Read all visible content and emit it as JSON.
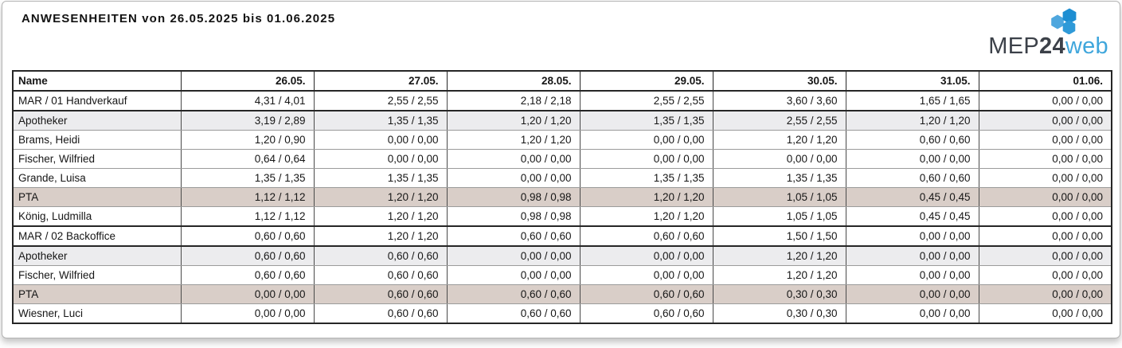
{
  "page": {
    "title": "ANWESENHEITEN von 26.05.2025 bis 01.06.2025"
  },
  "logo": {
    "mep": "MEP",
    "num": "24",
    "web": "web",
    "colors": {
      "text_dark": "#3c4149",
      "text_blue": "#3fa6dc",
      "hex_left": "#4fa7de",
      "hex_top_right": "#1d8ed2",
      "hex_bottom_right": "#2f9ad8"
    }
  },
  "table": {
    "columns": [
      "Name",
      "26.05.",
      "27.05.",
      "28.05.",
      "29.05.",
      "30.05.",
      "31.05.",
      "01.06."
    ],
    "row_colors": {
      "department": "#ffffff",
      "person": "#ffffff",
      "group-apotheker": "#ececee",
      "group-pta": "#d9cec8"
    },
    "rows": [
      {
        "name": "MAR / 01 Handverkauf",
        "type": "department",
        "values": [
          "4,31 / 4,01",
          "2,55 / 2,55",
          "2,18 / 2,18",
          "2,55 / 2,55",
          "3,60 / 3,60",
          "1,65 / 1,65",
          "0,00 / 0,00"
        ]
      },
      {
        "name": "Apotheker",
        "type": "group-apotheker",
        "values": [
          "3,19 / 2,89",
          "1,35 / 1,35",
          "1,20 / 1,20",
          "1,35 / 1,35",
          "2,55 / 2,55",
          "1,20 / 1,20",
          "0,00 / 0,00"
        ]
      },
      {
        "name": "Brams, Heidi",
        "type": "person",
        "values": [
          "1,20 / 0,90",
          "0,00 / 0,00",
          "1,20 / 1,20",
          "0,00 / 0,00",
          "1,20 / 1,20",
          "0,60 / 0,60",
          "0,00 / 0,00"
        ]
      },
      {
        "name": "Fischer, Wilfried",
        "type": "person",
        "values": [
          "0,64 / 0,64",
          "0,00 / 0,00",
          "0,00 / 0,00",
          "0,00 / 0,00",
          "0,00 / 0,00",
          "0,00 / 0,00",
          "0,00 / 0,00"
        ]
      },
      {
        "name": "Grande, Luisa",
        "type": "person",
        "values": [
          "1,35 / 1,35",
          "1,35 / 1,35",
          "0,00 / 0,00",
          "1,35 / 1,35",
          "1,35 / 1,35",
          "0,60 / 0,60",
          "0,00 / 0,00"
        ]
      },
      {
        "name": "PTA",
        "type": "group-pta",
        "values": [
          "1,12 / 1,12",
          "1,20 / 1,20",
          "0,98 / 0,98",
          "1,20 / 1,20",
          "1,05 / 1,05",
          "0,45 / 0,45",
          "0,00 / 0,00"
        ]
      },
      {
        "name": "König, Ludmilla",
        "type": "person",
        "values": [
          "1,12 / 1,12",
          "1,20 / 1,20",
          "0,98 / 0,98",
          "1,20 / 1,20",
          "1,05 / 1,05",
          "0,45 / 0,45",
          "0,00 / 0,00"
        ]
      },
      {
        "name": "MAR / 02 Backoffice",
        "type": "department",
        "values": [
          "0,60 / 0,60",
          "1,20 / 1,20",
          "0,60 / 0,60",
          "0,60 / 0,60",
          "1,50 / 1,50",
          "0,00 / 0,00",
          "0,00 / 0,00"
        ]
      },
      {
        "name": "Apotheker",
        "type": "group-apotheker",
        "values": [
          "0,60 / 0,60",
          "0,60 / 0,60",
          "0,00 / 0,00",
          "0,00 / 0,00",
          "1,20 / 1,20",
          "0,00 / 0,00",
          "0,00 / 0,00"
        ]
      },
      {
        "name": "Fischer, Wilfried",
        "type": "person",
        "values": [
          "0,60 / 0,60",
          "0,60 / 0,60",
          "0,00 / 0,00",
          "0,00 / 0,00",
          "1,20 / 1,20",
          "0,00 / 0,00",
          "0,00 / 0,00"
        ]
      },
      {
        "name": "PTA",
        "type": "group-pta",
        "values": [
          "0,00 / 0,00",
          "0,60 / 0,60",
          "0,60 / 0,60",
          "0,60 / 0,60",
          "0,30 / 0,30",
          "0,00 / 0,00",
          "0,00 / 0,00"
        ]
      },
      {
        "name": "Wiesner, Luci",
        "type": "person",
        "values": [
          "0,00 / 0,00",
          "0,60 / 0,60",
          "0,60 / 0,60",
          "0,60 / 0,60",
          "0,30 / 0,30",
          "0,00 / 0,00",
          "0,00 / 0,00"
        ]
      }
    ]
  }
}
